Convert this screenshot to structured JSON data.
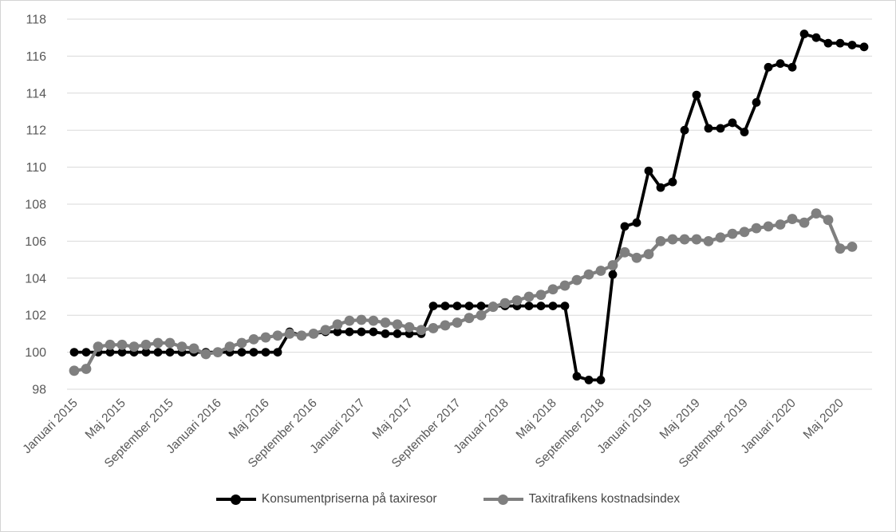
{
  "chart_data": {
    "type": "line",
    "title": "",
    "xlabel": "",
    "ylabel": "",
    "x_unit": "month",
    "x_start": "Januari 2015",
    "x_tick_every": 4,
    "x_tick_labels": [
      "Januari 2015",
      "Maj 2015",
      "September 2015",
      "Januari 2016",
      "Maj 2016",
      "September 2016",
      "Januari 2017",
      "Maj 2017",
      "September 2017",
      "Januari 2018",
      "Maj 2018",
      "September 2018",
      "Januari 2019",
      "Maj 2019",
      "September 2019",
      "Januari 2020",
      "Maj 2020"
    ],
    "ylim": [
      98,
      118
    ],
    "y_ticks": [
      98,
      100,
      102,
      104,
      106,
      108,
      110,
      112,
      114,
      116,
      118
    ],
    "grid": "horizontal",
    "legend_position": "bottom-center",
    "series": [
      {
        "name": "Konsumentpriserna på taxiresor",
        "color": "#000000",
        "marker": "circle",
        "values": [
          100,
          100,
          100,
          100,
          100,
          100,
          100,
          100,
          100,
          100,
          100,
          100,
          100,
          100,
          100,
          100,
          100,
          100,
          101.1,
          100.9,
          101,
          101.1,
          101.1,
          101.1,
          101.1,
          101.1,
          101,
          101,
          101,
          101,
          102.5,
          102.5,
          102.5,
          102.5,
          102.5,
          102.5,
          102.5,
          102.5,
          102.5,
          102.5,
          102.5,
          102.5,
          98.7,
          98.5,
          98.5,
          104.2,
          106.8,
          107,
          109.8,
          108.9,
          109.2,
          112,
          113.9,
          112.1,
          112.1,
          112.4,
          111.9,
          113.5,
          115.4,
          115.6,
          115.4,
          117.2,
          117,
          116.7,
          116.7,
          116.6,
          116.5
        ]
      },
      {
        "name": "Taxitrafikens kostnadsindex",
        "color": "#7f7f7f",
        "marker": "circle",
        "values": [
          99,
          99.1,
          100.3,
          100.4,
          100.4,
          100.3,
          100.4,
          100.5,
          100.5,
          100.3,
          100.2,
          99.9,
          100,
          100.3,
          100.5,
          100.7,
          100.8,
          100.9,
          101,
          100.9,
          101,
          101.2,
          101.5,
          101.7,
          101.75,
          101.7,
          101.6,
          101.5,
          101.35,
          101.2,
          101.3,
          101.45,
          101.6,
          101.85,
          102,
          102.45,
          102.65,
          102.8,
          103,
          103.1,
          103.4,
          103.6,
          103.9,
          104.2,
          104.4,
          104.7,
          105.4,
          105.1,
          105.3,
          106,
          106.1,
          106.1,
          106.1,
          106,
          106.2,
          106.4,
          106.5,
          106.7,
          106.8,
          106.9,
          107.2,
          107,
          107.5,
          107.15,
          105.6,
          105.7
        ]
      }
    ]
  },
  "legend": {
    "items": [
      {
        "label": "Konsumentpriserna på taxiresor"
      },
      {
        "label": "Taxitrafikens kostnadsindex"
      }
    ]
  },
  "colors": {
    "series_1": "#000000",
    "series_2": "#7f7f7f",
    "gridline": "#d9d9d9",
    "axis_text": "#595959",
    "legend_text": "#474747",
    "background": "#ffffff",
    "border": "#d4d4d4"
  }
}
